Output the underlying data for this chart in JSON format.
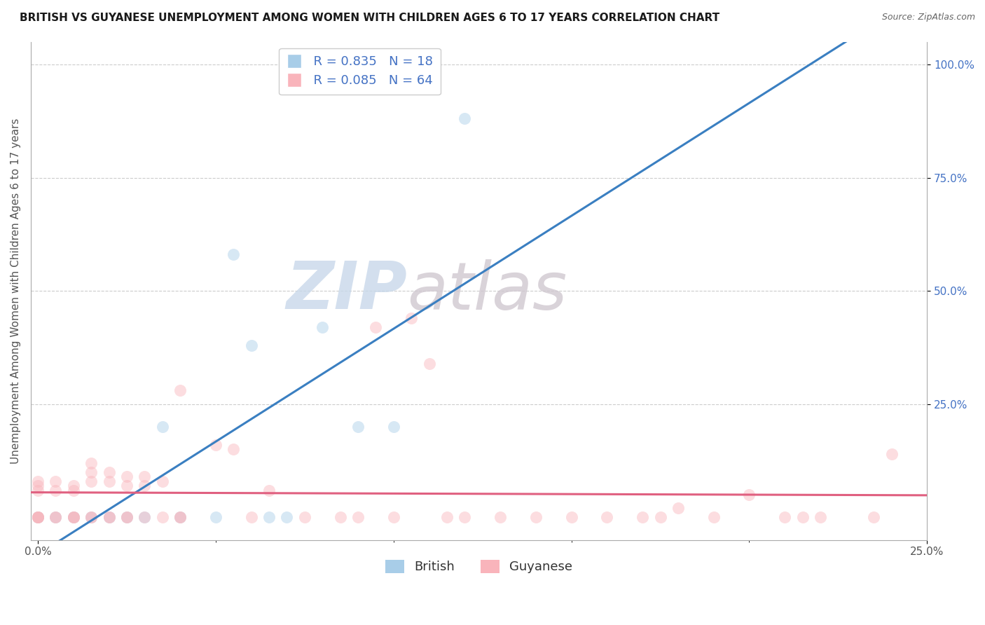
{
  "title": "BRITISH VS GUYANESE UNEMPLOYMENT AMONG WOMEN WITH CHILDREN AGES 6 TO 17 YEARS CORRELATION CHART",
  "source": "Source: ZipAtlas.com",
  "ylabel": "Unemployment Among Women with Children Ages 6 to 17 years",
  "xlim": [
    -0.002,
    0.25
  ],
  "ylim": [
    -0.05,
    1.05
  ],
  "xtick_positions": [
    0.0,
    0.25
  ],
  "xtick_labels": [
    "0.0%",
    "25.0%"
  ],
  "ytick_positions": [
    0.25,
    0.5,
    0.75,
    1.0
  ],
  "ytick_labels": [
    "25.0%",
    "50.0%",
    "75.0%",
    "100.0%"
  ],
  "british_color": "#a8cde8",
  "guyanese_color": "#f9b4bb",
  "british_line_color": "#3a7fc1",
  "guyanese_line_color": "#e06080",
  "british_R": 0.835,
  "british_N": 18,
  "guyanese_R": 0.085,
  "guyanese_N": 64,
  "legend_label_british": "British",
  "legend_label_guyanese": "Guyanese",
  "watermark_zip": "ZIP",
  "watermark_atlas": "atlas",
  "british_x": [
    0.0,
    0.005,
    0.01,
    0.015,
    0.02,
    0.025,
    0.03,
    0.035,
    0.04,
    0.05,
    0.055,
    0.06,
    0.065,
    0.07,
    0.08,
    0.09,
    0.1,
    0.12
  ],
  "british_y": [
    0.0,
    0.0,
    0.0,
    0.0,
    0.0,
    0.0,
    0.0,
    0.2,
    0.0,
    0.0,
    0.58,
    0.38,
    0.0,
    0.0,
    0.42,
    0.2,
    0.2,
    0.88
  ],
  "guyanese_x": [
    0.0,
    0.0,
    0.0,
    0.0,
    0.0,
    0.0,
    0.0,
    0.005,
    0.005,
    0.005,
    0.005,
    0.01,
    0.01,
    0.01,
    0.01,
    0.01,
    0.015,
    0.015,
    0.015,
    0.015,
    0.015,
    0.02,
    0.02,
    0.02,
    0.02,
    0.025,
    0.025,
    0.025,
    0.025,
    0.03,
    0.03,
    0.03,
    0.035,
    0.035,
    0.04,
    0.04,
    0.04,
    0.05,
    0.055,
    0.06,
    0.065,
    0.075,
    0.085,
    0.09,
    0.095,
    0.1,
    0.105,
    0.11,
    0.115,
    0.12,
    0.13,
    0.14,
    0.15,
    0.16,
    0.17,
    0.175,
    0.18,
    0.19,
    0.2,
    0.21,
    0.215,
    0.22,
    0.235,
    0.24
  ],
  "guyanese_y": [
    0.0,
    0.0,
    0.0,
    0.0,
    0.06,
    0.07,
    0.08,
    0.0,
    0.0,
    0.06,
    0.08,
    0.0,
    0.0,
    0.0,
    0.06,
    0.07,
    0.0,
    0.0,
    0.08,
    0.1,
    0.12,
    0.0,
    0.0,
    0.08,
    0.1,
    0.0,
    0.0,
    0.07,
    0.09,
    0.0,
    0.07,
    0.09,
    0.0,
    0.08,
    0.0,
    0.0,
    0.28,
    0.16,
    0.15,
    0.0,
    0.06,
    0.0,
    0.0,
    0.0,
    0.42,
    0.0,
    0.44,
    0.34,
    0.0,
    0.0,
    0.0,
    0.0,
    0.0,
    0.0,
    0.0,
    0.0,
    0.02,
    0.0,
    0.05,
    0.0,
    0.0,
    0.0,
    0.0,
    0.14
  ],
  "marker_size": 150,
  "marker_alpha": 0.45,
  "grid_color": "#cccccc",
  "grid_linestyle": "--",
  "background_color": "#ffffff",
  "title_fontsize": 11,
  "axis_label_fontsize": 11,
  "tick_fontsize": 11,
  "legend_fontsize": 13
}
